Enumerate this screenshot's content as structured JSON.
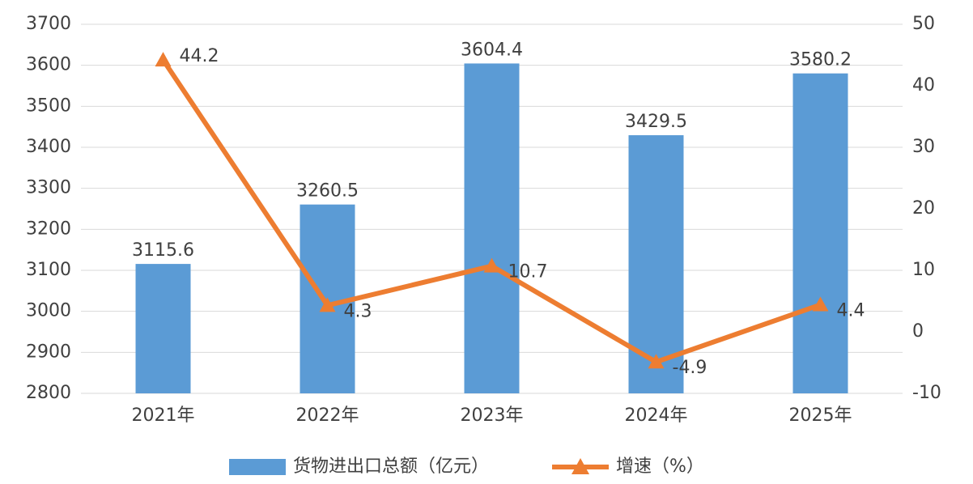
{
  "chart_data": {
    "type": "bar",
    "categories": [
      "2021年",
      "2022年",
      "2023年",
      "2024年",
      "2025年"
    ],
    "series": [
      {
        "name": "货物进出口总额（亿元）",
        "color": "#5b9bd5",
        "values": [
          3115.6,
          3260.5,
          3604.4,
          3429.5,
          3580.2
        ]
      },
      {
        "name": "增速（%）",
        "color": "#ed7d31",
        "type": "line",
        "axis": "y2",
        "values": [
          44.2,
          4.3,
          10.7,
          -4.9,
          4.4
        ]
      }
    ],
    "ylim": [
      2800,
      3700
    ],
    "yticks": [
      2800,
      2900,
      3000,
      3100,
      3200,
      3300,
      3400,
      3500,
      3600,
      3700
    ],
    "y2lim": [
      -10,
      50
    ],
    "y2ticks": [
      -10,
      0,
      10,
      20,
      30,
      40,
      50
    ],
    "grid": true,
    "legend": "bottom"
  }
}
